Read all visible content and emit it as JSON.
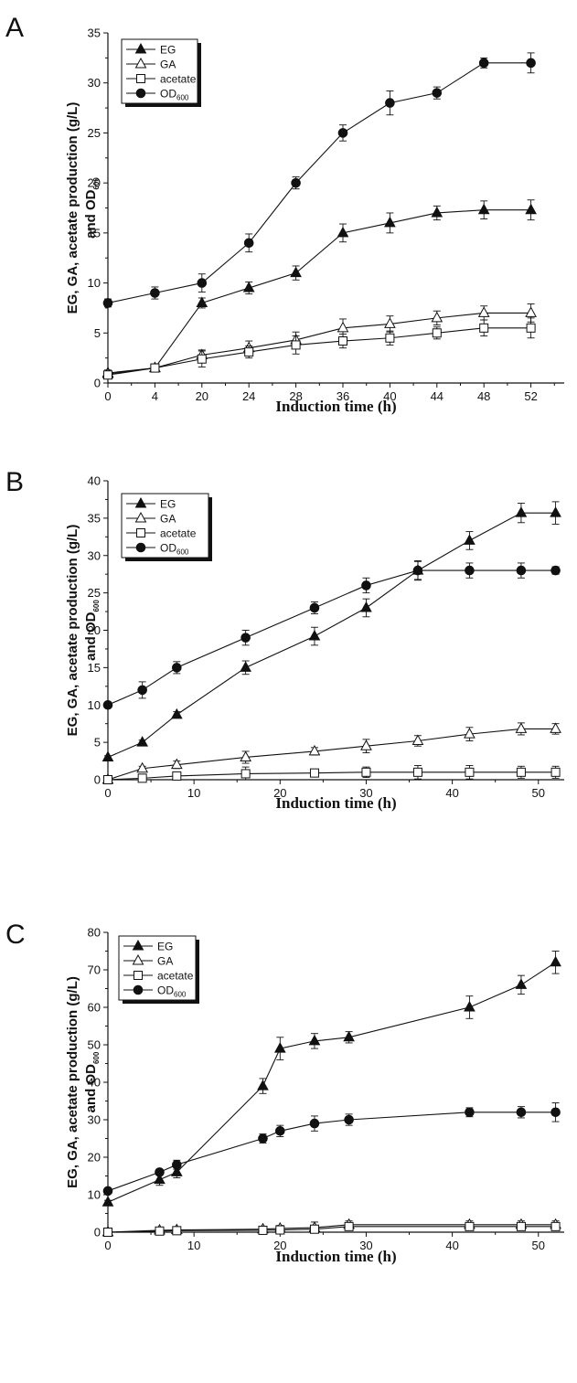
{
  "chart_data": [
    {
      "panel": "A",
      "type": "line",
      "xscale": "categorical",
      "categories": [
        "0",
        "4",
        "20",
        "24",
        "28",
        "36",
        "40",
        "44",
        "48",
        "52"
      ],
      "xticks": [
        "0",
        "4",
        "20",
        "24",
        "28",
        "36",
        "40",
        "44",
        "48",
        "52"
      ],
      "yticks": [
        "0",
        "5",
        "10",
        "15",
        "20",
        "25",
        "30",
        "35"
      ],
      "ylim": [
        0,
        35
      ],
      "xlabel": "Induction time (h)",
      "ylabel_line1": "EG, GA, acetate production (g/L)",
      "ylabel_line2": "and OD",
      "ylabel_sub": "600",
      "legend": [
        {
          "label": "EG",
          "sub": ""
        },
        {
          "label": "GA",
          "sub": ""
        },
        {
          "label": "acetate",
          "sub": ""
        },
        {
          "label": "OD",
          "sub": "600"
        }
      ],
      "series": [
        {
          "name": "EG",
          "marker": "triangle-filled",
          "values": [
            1.0,
            1.5,
            8.0,
            9.5,
            11.0,
            15.0,
            16.0,
            17.0,
            17.3,
            17.3
          ],
          "errors": [
            0.3,
            0.3,
            0.5,
            0.6,
            0.7,
            0.9,
            1.0,
            0.7,
            0.9,
            1.0
          ]
        },
        {
          "name": "GA",
          "marker": "triangle-open",
          "values": [
            0.9,
            1.5,
            2.8,
            3.5,
            4.3,
            5.5,
            5.9,
            6.5,
            7.0,
            7.0
          ],
          "errors": [
            0.2,
            0.3,
            0.5,
            0.7,
            0.8,
            0.9,
            0.8,
            0.7,
            0.7,
            0.9
          ]
        },
        {
          "name": "acetate",
          "marker": "square-open",
          "values": [
            0.8,
            1.5,
            2.4,
            3.1,
            3.8,
            4.2,
            4.5,
            5.0,
            5.5,
            5.5
          ],
          "errors": [
            0.3,
            0.4,
            0.8,
            0.6,
            0.9,
            0.7,
            0.7,
            0.6,
            0.8,
            1.0
          ]
        },
        {
          "name": "OD600",
          "marker": "circle-filled",
          "values": [
            8.0,
            9.0,
            10.0,
            14.0,
            20.0,
            25.0,
            28.0,
            29.0,
            32.0,
            32.0
          ],
          "errors": [
            0.4,
            0.6,
            0.9,
            0.9,
            0.6,
            0.8,
            1.2,
            0.6,
            0.5,
            1.0
          ]
        }
      ]
    },
    {
      "panel": "B",
      "type": "line",
      "xscale": "linear",
      "xlim": [
        0,
        53
      ],
      "xticks": [
        "0",
        "10",
        "20",
        "30",
        "40",
        "50"
      ],
      "yticks": [
        "0",
        "5",
        "10",
        "15",
        "20",
        "25",
        "30",
        "35",
        "40"
      ],
      "ylim": [
        0,
        40
      ],
      "xlabel": "Induction time (h)",
      "ylabel_line1": "EG, GA, acetate production (g/L)",
      "ylabel_line2": "and OD",
      "ylabel_sub": "600",
      "legend": [
        {
          "label": "EG",
          "sub": ""
        },
        {
          "label": "GA",
          "sub": ""
        },
        {
          "label": "acetate",
          "sub": ""
        },
        {
          "label": "OD",
          "sub": "600"
        }
      ],
      "x": [
        0,
        4,
        8,
        16,
        24,
        30,
        36,
        42,
        48,
        52
      ],
      "series": [
        {
          "name": "EG",
          "marker": "triangle-filled",
          "values": [
            3.0,
            5.0,
            8.7,
            15.0,
            19.2,
            23.0,
            28.0,
            32.0,
            35.7,
            35.7
          ],
          "errors": [
            0.2,
            0.3,
            0.4,
            0.9,
            1.2,
            1.2,
            1.2,
            1.2,
            1.3,
            1.5
          ]
        },
        {
          "name": "GA",
          "marker": "triangle-open",
          "values": [
            0.0,
            1.5,
            2.0,
            3.0,
            3.8,
            4.5,
            5.2,
            6.1,
            6.8,
            6.8
          ],
          "errors": [
            0.1,
            0.3,
            0.5,
            0.8,
            0.5,
            0.9,
            0.7,
            0.9,
            0.8,
            0.7
          ]
        },
        {
          "name": "acetate",
          "marker": "square-open",
          "values": [
            0.0,
            0.2,
            0.5,
            0.8,
            0.9,
            1.0,
            1.0,
            1.0,
            1.0,
            1.0
          ],
          "errors": [
            0.1,
            0.3,
            0.4,
            0.9,
            0.5,
            0.7,
            0.9,
            0.9,
            0.8,
            0.8
          ]
        },
        {
          "name": "OD600",
          "marker": "circle-filled",
          "values": [
            10.0,
            12.0,
            15.0,
            19.0,
            23.0,
            26.0,
            28.0,
            28.0,
            28.0,
            28.0
          ],
          "errors": [
            0.3,
            1.1,
            0.8,
            1.0,
            0.8,
            1.0,
            1.3,
            1.0,
            1.0,
            0.5
          ]
        }
      ]
    },
    {
      "panel": "C",
      "type": "line",
      "xscale": "linear",
      "xlim": [
        0,
        53
      ],
      "xticks": [
        "0",
        "10",
        "20",
        "30",
        "40",
        "50"
      ],
      "yticks": [
        "0",
        "10",
        "20",
        "30",
        "40",
        "50",
        "60",
        "70",
        "80"
      ],
      "ylim": [
        0,
        80
      ],
      "xlabel": "Induction time (h)",
      "ylabel_line1": "EG, GA, acetate production (g/L)",
      "ylabel_line2": "and OD",
      "ylabel_sub": "600",
      "legend": [
        {
          "label": "EG",
          "sub": ""
        },
        {
          "label": "GA",
          "sub": ""
        },
        {
          "label": "acetate",
          "sub": ""
        },
        {
          "label": "OD",
          "sub": "600"
        }
      ],
      "x": [
        0,
        6,
        8,
        18,
        20,
        24,
        28,
        42,
        48,
        52
      ],
      "series": [
        {
          "name": "EG",
          "marker": "triangle-filled",
          "values": [
            8.0,
            14.0,
            16.0,
            39.0,
            49.0,
            51.0,
            52.0,
            60.0,
            66.0,
            72.0
          ],
          "errors": [
            0.5,
            1.5,
            1.5,
            2.0,
            3.0,
            2.0,
            1.5,
            3.0,
            2.5,
            3.0
          ]
        },
        {
          "name": "GA",
          "marker": "triangle-open",
          "values": [
            0.0,
            0.5,
            0.6,
            0.8,
            1.0,
            1.2,
            2.0,
            2.0,
            2.0,
            2.0
          ],
          "errors": [
            0.1,
            0.3,
            0.3,
            0.5,
            0.8,
            1.5,
            1.0,
            1.0,
            1.0,
            1.0
          ]
        },
        {
          "name": "acetate",
          "marker": "square-open",
          "values": [
            0.0,
            0.3,
            0.4,
            0.5,
            0.6,
            0.8,
            1.5,
            1.5,
            1.5,
            1.5
          ],
          "errors": [
            0.1,
            0.3,
            0.3,
            0.5,
            0.6,
            0.8,
            0.8,
            0.8,
            0.8,
            0.8
          ]
        },
        {
          "name": "OD600",
          "marker": "circle-filled",
          "values": [
            11.0,
            16.0,
            18.0,
            25.0,
            27.0,
            29.0,
            30.0,
            32.0,
            32.0,
            32.0
          ],
          "errors": [
            0.5,
            0.8,
            1.2,
            1.2,
            1.5,
            2.0,
            1.5,
            1.2,
            1.5,
            2.5
          ]
        }
      ]
    }
  ]
}
